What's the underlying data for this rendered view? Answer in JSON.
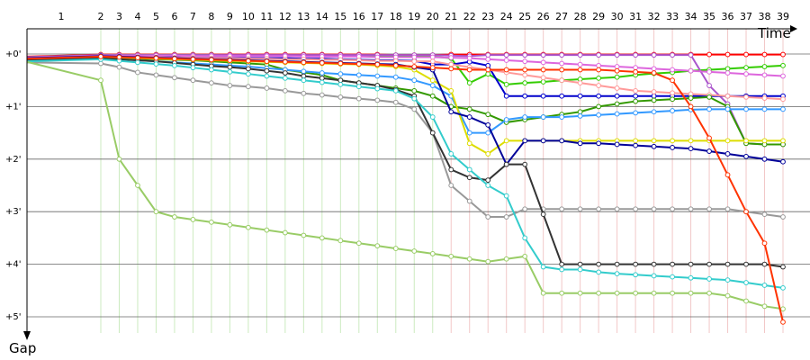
{
  "chart_data": {
    "type": "line",
    "xlabel": "Time",
    "ylabel": "Gap",
    "x_ticks": [
      "1",
      "2",
      "3",
      "4",
      "5",
      "6",
      "7",
      "8",
      "9",
      "10",
      "11",
      "12",
      "13",
      "14",
      "15",
      "16",
      "17",
      "18",
      "19",
      "20",
      "21",
      "22",
      "23",
      "24",
      "25",
      "26",
      "27",
      "28",
      "29",
      "30",
      "31",
      "32",
      "33",
      "34",
      "35",
      "36",
      "37",
      "38",
      "39"
    ],
    "x_tick_labels": [
      "1",
      "2",
      "3",
      "4",
      "5",
      "6",
      "7",
      "8",
      "9",
      "10",
      "11",
      "12",
      "13",
      "14",
      "15",
      "16",
      "17",
      "18",
      "19",
      "20",
      "21",
      "22",
      "23",
      "24",
      "25",
      "26",
      "27",
      "28",
      "29",
      "30",
      "31",
      "32",
      "33",
      "34",
      "35",
      "36",
      "37",
      "38",
      "39"
    ],
    "y_ticks_min": [
      0,
      1,
      2,
      3,
      4,
      5
    ],
    "y_tick_labels": [
      "+0'",
      "+1'",
      "+2'",
      "+3'",
      "+4'",
      "+5'"
    ],
    "ylim_min": [
      0,
      5.6
    ],
    "grid": true,
    "series": [
      {
        "color": "#ff0000",
        "values": [
          0.05,
          0.01,
          0.01,
          0.01,
          0.01,
          0.01,
          0.01,
          0.01,
          0.01,
          0.01,
          0.01,
          0.01,
          0.01,
          0.01,
          0.01,
          0.01,
          0.01,
          0.02,
          0.02,
          0.02,
          0.01,
          0.01,
          0.01,
          0.01,
          0.01,
          0.01,
          0.01,
          0.01,
          0.01,
          0.01,
          0.01,
          0.01,
          0.01,
          0.01,
          0.01,
          0.01,
          0.01,
          0.01,
          0.01
        ]
      },
      {
        "color": "#33cc00",
        "values": [
          0.06,
          0.02,
          0.02,
          0.02,
          0.02,
          0.02,
          0.02,
          0.02,
          0.03,
          0.03,
          0.03,
          0.03,
          0.03,
          0.03,
          0.03,
          0.03,
          0.03,
          0.03,
          0.04,
          0.05,
          0.08,
          0.55,
          0.38,
          0.58,
          0.55,
          0.53,
          0.5,
          0.48,
          0.46,
          0.44,
          0.4,
          0.37,
          0.35,
          0.32,
          0.3,
          0.28,
          0.26,
          0.24,
          0.22
        ]
      },
      {
        "color": "#aa55cc",
        "values": [
          0.06,
          0.02,
          0.02,
          0.02,
          0.02,
          0.02,
          0.02,
          0.02,
          0.02,
          0.02,
          0.02,
          0.02,
          0.02,
          0.02,
          0.02,
          0.02,
          0.02,
          0.02,
          0.02,
          0.02,
          0.03,
          0.04,
          0.02,
          0.02,
          0.02,
          0.02,
          0.02,
          0.02,
          0.02,
          0.02,
          0.02,
          0.02,
          0.02,
          0.02,
          0.6,
          0.95,
          1.7,
          1.72,
          1.72
        ]
      },
      {
        "color": "#0000cc",
        "values": [
          0.08,
          0.04,
          0.04,
          0.05,
          0.05,
          0.06,
          0.06,
          0.07,
          0.07,
          0.08,
          0.08,
          0.08,
          0.09,
          0.09,
          0.1,
          0.11,
          0.12,
          0.12,
          0.13,
          0.2,
          0.2,
          0.15,
          0.22,
          0.8,
          0.8,
          0.8,
          0.8,
          0.8,
          0.8,
          0.8,
          0.8,
          0.8,
          0.8,
          0.8,
          0.8,
          0.8,
          0.8,
          0.8,
          0.8
        ]
      },
      {
        "color": "#dd66dd",
        "values": [
          0.07,
          0.03,
          0.03,
          0.03,
          0.03,
          0.03,
          0.04,
          0.04,
          0.04,
          0.04,
          0.04,
          0.04,
          0.05,
          0.05,
          0.05,
          0.05,
          0.06,
          0.06,
          0.06,
          0.06,
          0.07,
          0.08,
          0.1,
          0.12,
          0.14,
          0.16,
          0.18,
          0.2,
          0.22,
          0.24,
          0.26,
          0.28,
          0.3,
          0.32,
          0.34,
          0.36,
          0.38,
          0.4,
          0.42
        ]
      },
      {
        "color": "#ff9999",
        "values": [
          0.09,
          0.05,
          0.05,
          0.06,
          0.06,
          0.07,
          0.07,
          0.08,
          0.08,
          0.09,
          0.09,
          0.1,
          0.1,
          0.11,
          0.11,
          0.12,
          0.13,
          0.13,
          0.14,
          0.14,
          0.2,
          0.25,
          0.3,
          0.35,
          0.4,
          0.45,
          0.5,
          0.55,
          0.6,
          0.65,
          0.7,
          0.72,
          0.74,
          0.76,
          0.78,
          0.8,
          0.82,
          0.84,
          0.86
        ]
      },
      {
        "color": "#339900",
        "values": [
          0.11,
          0.07,
          0.08,
          0.09,
          0.1,
          0.11,
          0.12,
          0.14,
          0.16,
          0.18,
          0.2,
          0.3,
          0.35,
          0.4,
          0.5,
          0.55,
          0.6,
          0.65,
          0.7,
          0.8,
          1.0,
          1.05,
          1.15,
          1.3,
          1.25,
          1.2,
          1.15,
          1.1,
          1.0,
          0.95,
          0.9,
          0.88,
          0.86,
          0.84,
          0.82,
          1.0,
          1.7,
          1.72,
          1.72
        ]
      },
      {
        "color": "#3399ff",
        "values": [
          0.12,
          0.08,
          0.1,
          0.12,
          0.14,
          0.16,
          0.18,
          0.2,
          0.22,
          0.24,
          0.27,
          0.3,
          0.33,
          0.36,
          0.38,
          0.4,
          0.42,
          0.44,
          0.5,
          0.6,
          0.8,
          1.5,
          1.5,
          1.25,
          1.2,
          1.2,
          1.2,
          1.18,
          1.16,
          1.14,
          1.12,
          1.1,
          1.08,
          1.06,
          1.05,
          1.05,
          1.05,
          1.05,
          1.05
        ]
      },
      {
        "color": "#dddd00",
        "values": [
          0.1,
          0.06,
          0.07,
          0.08,
          0.09,
          0.1,
          0.11,
          0.12,
          0.13,
          0.14,
          0.15,
          0.16,
          0.17,
          0.18,
          0.19,
          0.2,
          0.22,
          0.24,
          0.3,
          0.5,
          0.7,
          1.7,
          1.9,
          1.65,
          1.65,
          1.65,
          1.65,
          1.65,
          1.65,
          1.65,
          1.65,
          1.65,
          1.65,
          1.65,
          1.65,
          1.65,
          1.65,
          1.65,
          1.65
        ]
      },
      {
        "color": "#000099",
        "values": [
          0.08,
          0.04,
          0.05,
          0.06,
          0.07,
          0.08,
          0.09,
          0.1,
          0.11,
          0.12,
          0.13,
          0.14,
          0.15,
          0.16,
          0.17,
          0.18,
          0.19,
          0.2,
          0.25,
          0.3,
          1.1,
          1.2,
          1.35,
          2.1,
          1.65,
          1.65,
          1.65,
          1.7,
          1.7,
          1.72,
          1.74,
          1.76,
          1.78,
          1.8,
          1.85,
          1.9,
          1.95,
          2.0,
          2.05
        ]
      },
      {
        "color": "#999999",
        "values": [
          0.16,
          0.18,
          0.25,
          0.35,
          0.4,
          0.45,
          0.5,
          0.55,
          0.6,
          0.62,
          0.65,
          0.7,
          0.75,
          0.78,
          0.82,
          0.85,
          0.88,
          0.92,
          1.05,
          1.5,
          2.5,
          2.8,
          3.1,
          3.1,
          2.95,
          2.95,
          2.95,
          2.95,
          2.95,
          2.95,
          2.95,
          2.95,
          2.95,
          2.95,
          2.95,
          2.95,
          3.0,
          3.05,
          3.1
        ]
      },
      {
        "color": "#333333",
        "values": [
          0.12,
          0.08,
          0.1,
          0.12,
          0.14,
          0.17,
          0.2,
          0.23,
          0.25,
          0.28,
          0.32,
          0.36,
          0.42,
          0.46,
          0.5,
          0.55,
          0.6,
          0.68,
          0.8,
          1.5,
          2.2,
          2.35,
          2.4,
          2.1,
          2.1,
          3.05,
          4.0,
          4.0,
          4.0,
          4.0,
          4.0,
          4.0,
          4.0,
          4.0,
          4.0,
          4.0,
          4.0,
          4.0,
          4.05
        ]
      },
      {
        "color": "#33cccc",
        "values": [
          0.14,
          0.1,
          0.13,
          0.16,
          0.19,
          0.22,
          0.26,
          0.3,
          0.34,
          0.38,
          0.42,
          0.46,
          0.5,
          0.54,
          0.58,
          0.62,
          0.66,
          0.7,
          0.85,
          1.2,
          1.9,
          2.2,
          2.5,
          2.7,
          3.5,
          4.05,
          4.1,
          4.1,
          4.15,
          4.18,
          4.2,
          4.22,
          4.24,
          4.26,
          4.28,
          4.3,
          4.35,
          4.4,
          4.45
        ]
      },
      {
        "color": "#99cc66",
        "values": [
          0.15,
          0.5,
          2.0,
          2.5,
          3.0,
          3.1,
          3.15,
          3.2,
          3.25,
          3.3,
          3.35,
          3.4,
          3.45,
          3.5,
          3.55,
          3.6,
          3.65,
          3.7,
          3.75,
          3.8,
          3.85,
          3.9,
          3.95,
          3.9,
          3.85,
          4.55,
          4.55,
          4.55,
          4.55,
          4.55,
          4.55,
          4.55,
          4.55,
          4.55,
          4.55,
          4.6,
          4.7,
          4.8,
          4.85
        ]
      },
      {
        "color": "#ff3300",
        "values": [
          0.09,
          0.05,
          0.06,
          0.07,
          0.08,
          0.09,
          0.1,
          0.11,
          0.12,
          0.13,
          0.14,
          0.15,
          0.16,
          0.17,
          0.18,
          0.19,
          0.2,
          0.22,
          0.24,
          0.26,
          0.28,
          0.3,
          0.3,
          0.3,
          0.3,
          0.3,
          0.3,
          0.3,
          0.3,
          0.32,
          0.34,
          0.36,
          0.5,
          1.0,
          1.6,
          2.3,
          3.0,
          3.6,
          5.1
        ]
      }
    ]
  }
}
